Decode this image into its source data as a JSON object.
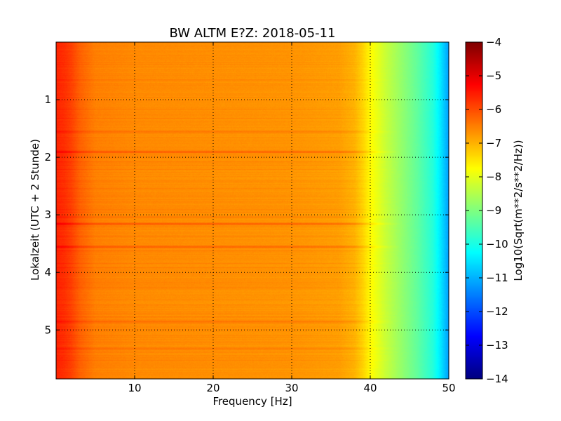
{
  "chart_data": {
    "type": "heatmap",
    "title": "BW ALTM E?Z: 2018-05-11",
    "xlabel": "Frequency [Hz]",
    "ylabel": "Lokalzeit (UTC + 2 Stunde)",
    "colorbar_label": "Log10(Sqrt(m**2/s**2/Hz))",
    "xlim": [
      0,
      50
    ],
    "ylim": [
      5.85,
      0
    ],
    "y_inverted": true,
    "x_ticks": [
      10,
      20,
      30,
      40,
      50
    ],
    "x_tick_labels": [
      "10",
      "20",
      "30",
      "40",
      "50"
    ],
    "y_ticks": [
      1,
      2,
      3,
      4,
      5
    ],
    "y_tick_labels": [
      "1",
      "2",
      "3",
      "4",
      "5"
    ],
    "colorbar_range": [
      -14,
      -4
    ],
    "colorbar_ticks": [
      -4,
      -5,
      -6,
      -7,
      -8,
      -9,
      -10,
      -11,
      -12,
      -13,
      -14
    ],
    "colorbar_tick_labels": [
      "−4",
      "−5",
      "−6",
      "−7",
      "−8",
      "−9",
      "−10",
      "−11",
      "−12",
      "−13",
      "−14"
    ],
    "colormap": "jet",
    "grid": true,
    "spectrum_profile": {
      "frequency_hz": [
        0,
        1,
        2,
        3,
        5,
        10,
        20,
        30,
        36,
        38,
        39,
        40,
        41,
        42,
        44,
        46,
        48,
        49,
        50
      ],
      "log10_amplitude": [
        -5.6,
        -5.7,
        -5.9,
        -6.2,
        -6.5,
        -6.6,
        -6.65,
        -6.7,
        -6.8,
        -7.0,
        -7.3,
        -7.7,
        -8.0,
        -8.3,
        -8.8,
        -9.3,
        -9.9,
        -10.5,
        -11.2
      ]
    },
    "time_bands": [
      {
        "time_h": 1.9,
        "log10_amplitude_offset": 0.5
      },
      {
        "time_h": 3.15,
        "log10_amplitude_offset": 0.55
      },
      {
        "time_h": 3.55,
        "log10_amplitude_offset": 0.5
      },
      {
        "time_h": 4.85,
        "log10_amplitude_offset": 0.35
      },
      {
        "time_h": 5.32,
        "log10_amplitude_offset": 0.3
      },
      {
        "time_h": 1.55,
        "log10_amplitude_offset": 0.2
      },
      {
        "time_h": 0.65,
        "log10_amplitude_offset": 0.15
      }
    ]
  },
  "colors": {
    "background": "#ffffff",
    "axis": "#000000",
    "grid": "#000000"
  }
}
